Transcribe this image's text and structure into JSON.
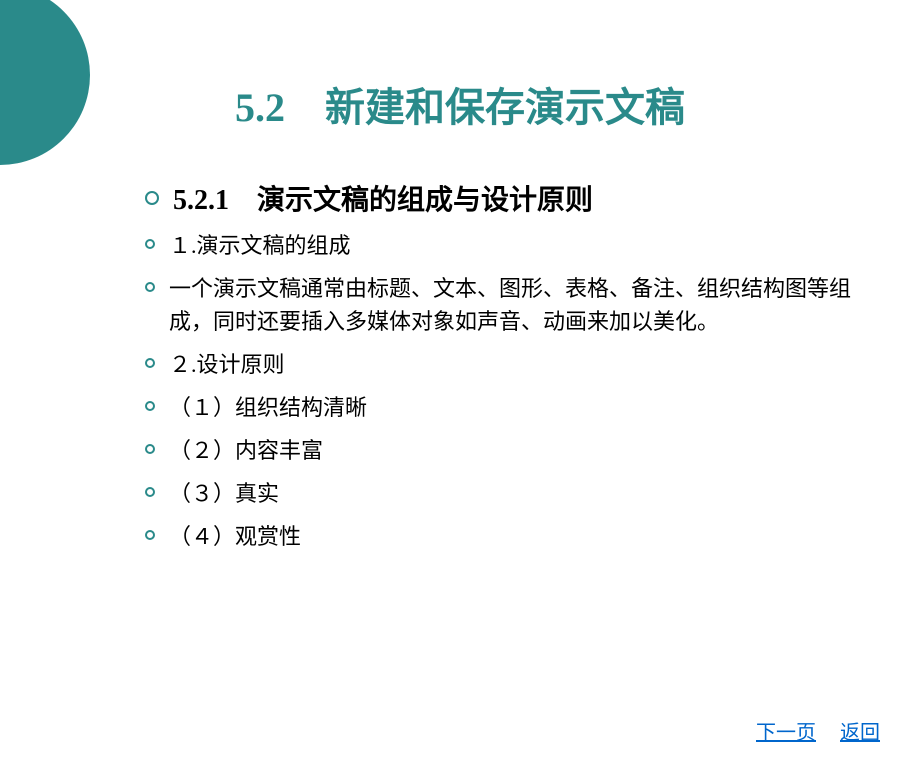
{
  "styles": {
    "accent_color": "#2a8a8a",
    "link_color": "#0066cc",
    "text_color": "#000000",
    "background_color": "#ffffff",
    "title_fontsize": 40,
    "subtitle_fontsize": 28,
    "body_fontsize": 22
  },
  "title": "5.2　新建和保存演示文稿",
  "subtitle": "5.2.1　演示文稿的组成与设计原则",
  "bullets": {
    "item1": "１.演示文稿的组成",
    "item2": "一个演示文稿通常由标题、文本、图形、表格、备注、组织结构图等组成，同时还要插入多媒体对象如声音、动画来加以美化。",
    "item3": "２.设计原则",
    "item4": "（１）组织结构清晰",
    "item5": "（２）内容丰富",
    "item6": "（３）真实",
    "item7": "（４）观赏性"
  },
  "nav": {
    "next": "下一页",
    "back": "返回"
  }
}
